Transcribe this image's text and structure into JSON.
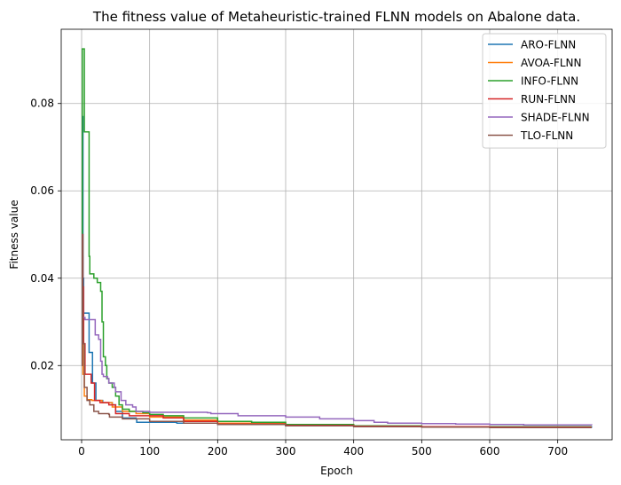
{
  "chart_data": {
    "type": "line",
    "title": "The fitness value of Metaheuristic-trained FLNN models on Abalone data.",
    "xlabel": "Epoch",
    "ylabel": "Fitness value",
    "xlim": [
      -30,
      780
    ],
    "ylim": [
      0.003,
      0.097
    ],
    "xticks": [
      0,
      100,
      200,
      300,
      400,
      500,
      600,
      700
    ],
    "xtick_labels": [
      "0",
      "100",
      "200",
      "300",
      "400",
      "500",
      "600",
      "700"
    ],
    "yticks": [
      0.02,
      0.04,
      0.06,
      0.08
    ],
    "ytick_labels": [
      "0.02",
      "0.04",
      "0.06",
      "0.08"
    ],
    "grid": true,
    "legend_position": "top-right",
    "series": [
      {
        "name": "ARO-FLNN",
        "color": "#1f77b4",
        "points": [
          [
            0,
            0.032
          ],
          [
            1,
            0.077
          ],
          [
            2,
            0.04
          ],
          [
            3,
            0.032
          ],
          [
            10,
            0.032
          ],
          [
            11,
            0.023
          ],
          [
            15,
            0.023
          ],
          [
            16,
            0.016
          ],
          [
            20,
            0.016
          ],
          [
            21,
            0.012
          ],
          [
            30,
            0.012
          ],
          [
            31,
            0.0115
          ],
          [
            45,
            0.011
          ],
          [
            50,
            0.0095
          ],
          [
            60,
            0.008
          ],
          [
            80,
            0.0078
          ],
          [
            81,
            0.007
          ],
          [
            100,
            0.007
          ],
          [
            140,
            0.0068
          ],
          [
            200,
            0.0065
          ],
          [
            300,
            0.0062
          ],
          [
            400,
            0.0061
          ],
          [
            500,
            0.006
          ],
          [
            600,
            0.0059
          ],
          [
            750,
            0.0058
          ]
        ]
      },
      {
        "name": "AVOA-FLNN",
        "color": "#ff7f0e",
        "points": [
          [
            0,
            0.03
          ],
          [
            1,
            0.03
          ],
          [
            2,
            0.018
          ],
          [
            4,
            0.013
          ],
          [
            8,
            0.0122
          ],
          [
            15,
            0.012
          ],
          [
            30,
            0.0115
          ],
          [
            45,
            0.0105
          ],
          [
            60,
            0.0095
          ],
          [
            80,
            0.009
          ],
          [
            100,
            0.0082
          ],
          [
            150,
            0.0075
          ],
          [
            200,
            0.0068
          ],
          [
            300,
            0.0065
          ],
          [
            400,
            0.0062
          ],
          [
            500,
            0.006
          ],
          [
            600,
            0.0059
          ],
          [
            750,
            0.0059
          ]
        ]
      },
      {
        "name": "INFO-FLNN",
        "color": "#2ca02c",
        "points": [
          [
            0,
            0.05
          ],
          [
            1,
            0.0925
          ],
          [
            3,
            0.0925
          ],
          [
            4,
            0.0735
          ],
          [
            10,
            0.0735
          ],
          [
            11,
            0.045
          ],
          [
            12,
            0.041
          ],
          [
            18,
            0.04
          ],
          [
            23,
            0.039
          ],
          [
            28,
            0.037
          ],
          [
            30,
            0.03
          ],
          [
            32,
            0.022
          ],
          [
            35,
            0.02
          ],
          [
            37,
            0.017
          ],
          [
            40,
            0.016
          ],
          [
            45,
            0.015
          ],
          [
            50,
            0.013
          ],
          [
            55,
            0.011
          ],
          [
            60,
            0.01
          ],
          [
            70,
            0.0095
          ],
          [
            90,
            0.0092
          ],
          [
            100,
            0.0088
          ],
          [
            120,
            0.0085
          ],
          [
            150,
            0.008
          ],
          [
            200,
            0.0072
          ],
          [
            250,
            0.007
          ],
          [
            300,
            0.0065
          ],
          [
            400,
            0.0062
          ],
          [
            500,
            0.006
          ],
          [
            600,
            0.006
          ],
          [
            750,
            0.006
          ]
        ]
      },
      {
        "name": "RUN-FLNN",
        "color": "#d62728",
        "points": [
          [
            0,
            0.04
          ],
          [
            1,
            0.038
          ],
          [
            3,
            0.025
          ],
          [
            5,
            0.018
          ],
          [
            12,
            0.018
          ],
          [
            14,
            0.016
          ],
          [
            17,
            0.016
          ],
          [
            19,
            0.012
          ],
          [
            25,
            0.012
          ],
          [
            27,
            0.0115
          ],
          [
            40,
            0.011
          ],
          [
            50,
            0.009
          ],
          [
            70,
            0.0085
          ],
          [
            100,
            0.0085
          ],
          [
            120,
            0.008
          ],
          [
            150,
            0.0072
          ],
          [
            200,
            0.0066
          ],
          [
            300,
            0.0063
          ],
          [
            400,
            0.0061
          ],
          [
            500,
            0.006
          ],
          [
            600,
            0.0059
          ],
          [
            750,
            0.0059
          ]
        ]
      },
      {
        "name": "SHADE-FLNN",
        "color": "#9467bd",
        "points": [
          [
            0,
            0.035
          ],
          [
            1,
            0.045
          ],
          [
            2,
            0.031
          ],
          [
            5,
            0.0305
          ],
          [
            18,
            0.0305
          ],
          [
            20,
            0.027
          ],
          [
            25,
            0.026
          ],
          [
            28,
            0.021
          ],
          [
            30,
            0.018
          ],
          [
            32,
            0.0175
          ],
          [
            38,
            0.017
          ],
          [
            40,
            0.016
          ],
          [
            48,
            0.015
          ],
          [
            50,
            0.014
          ],
          [
            58,
            0.012
          ],
          [
            65,
            0.011
          ],
          [
            75,
            0.0105
          ],
          [
            80,
            0.0095
          ],
          [
            100,
            0.0093
          ],
          [
            150,
            0.0093
          ],
          [
            185,
            0.0092
          ],
          [
            190,
            0.009
          ],
          [
            230,
            0.0085
          ],
          [
            300,
            0.0082
          ],
          [
            350,
            0.0078
          ],
          [
            400,
            0.0074
          ],
          [
            430,
            0.007
          ],
          [
            450,
            0.0068
          ],
          [
            500,
            0.0067
          ],
          [
            550,
            0.0066
          ],
          [
            600,
            0.0065
          ],
          [
            650,
            0.0064
          ],
          [
            750,
            0.0063
          ]
        ]
      },
      {
        "name": "TLO-FLNN",
        "color": "#8c564b",
        "points": [
          [
            0,
            0.02
          ],
          [
            1,
            0.05
          ],
          [
            2,
            0.025
          ],
          [
            4,
            0.015
          ],
          [
            8,
            0.012
          ],
          [
            12,
            0.011
          ],
          [
            18,
            0.0095
          ],
          [
            25,
            0.009
          ],
          [
            40,
            0.0088
          ],
          [
            41,
            0.0082
          ],
          [
            60,
            0.0078
          ],
          [
            100,
            0.0072
          ],
          [
            150,
            0.0068
          ],
          [
            200,
            0.0065
          ],
          [
            300,
            0.0062
          ],
          [
            400,
            0.006
          ],
          [
            500,
            0.0059
          ],
          [
            600,
            0.0058
          ],
          [
            750,
            0.0058
          ]
        ]
      }
    ]
  }
}
